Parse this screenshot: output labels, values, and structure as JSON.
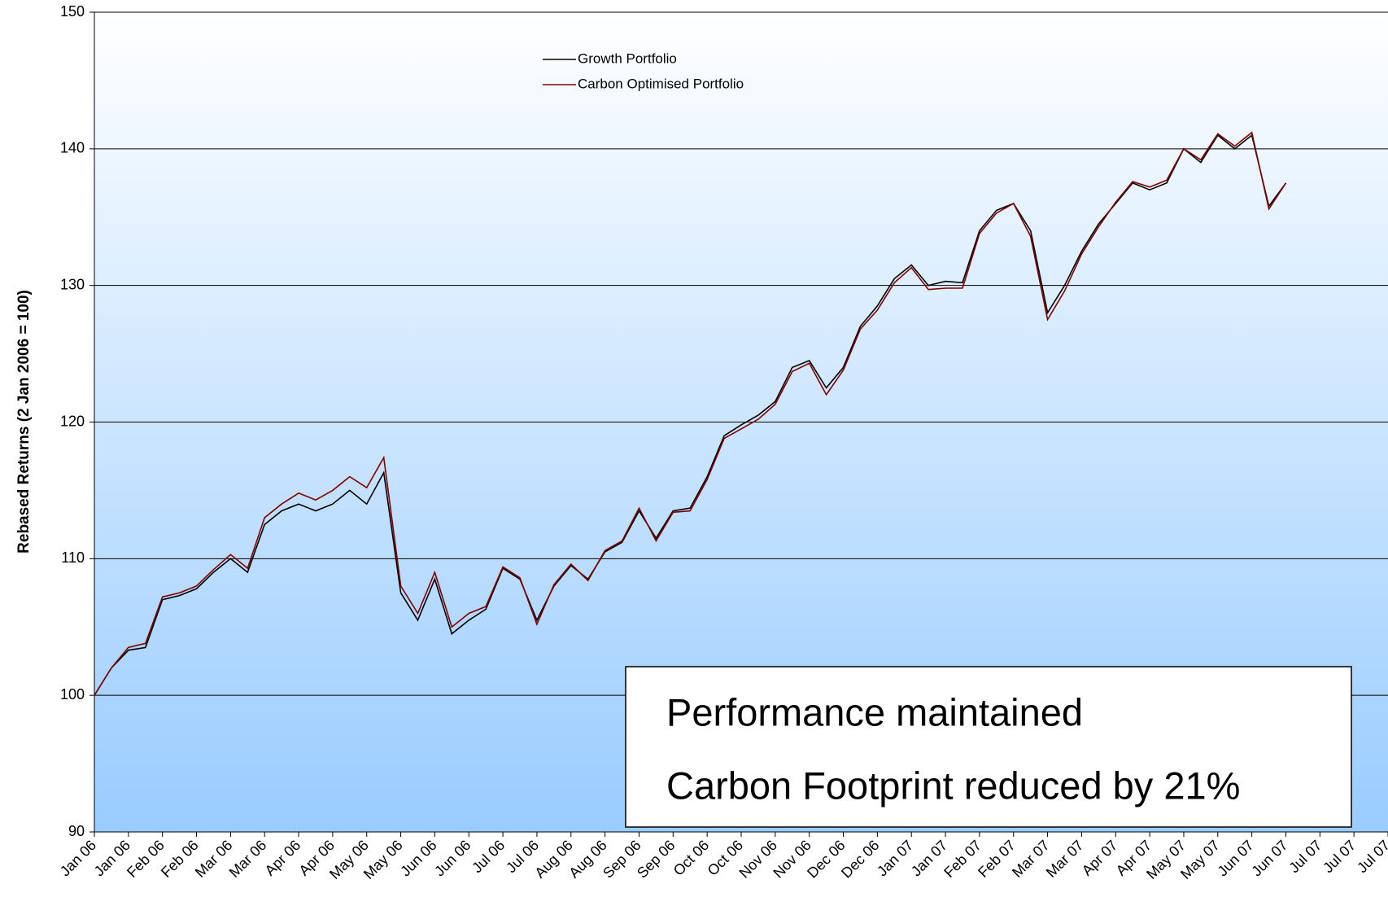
{
  "chart_data": {
    "type": "line",
    "ylabel": "Rebased Returns (2 Jan 2006 = 100)",
    "categories": [
      "Jan 06",
      null,
      "Jan 06",
      null,
      "Feb 06",
      null,
      "Feb 06",
      null,
      "Mar 06",
      null,
      "Mar 06",
      null,
      "Apr 06",
      null,
      "Apr 06",
      null,
      "May 06",
      null,
      "May 06",
      null,
      "Jun 06",
      null,
      "Jun 06",
      null,
      "Jul 06",
      null,
      "Jul 06",
      null,
      "Aug 06",
      null,
      "Aug 06",
      null,
      "Sep 06",
      null,
      "Sep 06",
      null,
      "Oct 06",
      null,
      "Oct 06",
      null,
      "Nov 06",
      null,
      "Nov 06",
      null,
      "Dec 06",
      null,
      "Dec 06",
      null,
      "Jan 07",
      null,
      "Jan 07",
      null,
      "Feb 07",
      null,
      "Feb 07",
      null,
      "Mar 07",
      null,
      "Mar 07",
      null,
      "Apr 07",
      null,
      "Apr 07",
      null,
      "May 07",
      null,
      "May 07",
      null,
      "Jun 07",
      null,
      "Jun 07",
      null,
      "Jul 07",
      null,
      "Jul 07",
      null,
      "Jul 07"
    ],
    "series": [
      {
        "name": "Growth Portfolio",
        "color": "#000000",
        "values": [
          100,
          102,
          103.3,
          103.5,
          107,
          107.3,
          107.8,
          109,
          110,
          109,
          112.5,
          113.5,
          114,
          113.5,
          114,
          115,
          114,
          116.3,
          107.5,
          105.5,
          108.5,
          104.5,
          105.5,
          106.3,
          109.3,
          108.5,
          105.5,
          108,
          109.5,
          108.5,
          110.5,
          111.2,
          113.5,
          111.5,
          113.5,
          113.7,
          116,
          119,
          119.8,
          120.5,
          121.5,
          124,
          124.5,
          122.5,
          124,
          127,
          128.5,
          130.5,
          131.5,
          130,
          130.3,
          130.2,
          134,
          135.5,
          136,
          134,
          128,
          130,
          132.5,
          134.5,
          136,
          137.5,
          137,
          137.5,
          140,
          139,
          141,
          140,
          141,
          135.8,
          137.5,
          null,
          null,
          null,
          null,
          null,
          null
        ]
      },
      {
        "name": "Carbon Optimised Portfolio",
        "color": "#800000",
        "values": [
          100,
          102,
          103.5,
          103.8,
          107.2,
          107.5,
          108,
          109.2,
          110.3,
          109.3,
          113,
          114,
          114.8,
          114.3,
          115,
          116,
          115.2,
          117.4,
          108,
          106,
          109,
          105,
          106,
          106.5,
          109.4,
          108.6,
          105.2,
          108.1,
          109.6,
          108.4,
          110.6,
          111.3,
          113.7,
          111.3,
          113.4,
          113.5,
          115.8,
          118.8,
          119.5,
          120.2,
          121.3,
          123.7,
          124.3,
          122,
          123.8,
          126.8,
          128.2,
          130.2,
          131.3,
          129.7,
          129.8,
          129.8,
          133.8,
          135.3,
          136,
          133.6,
          127.5,
          129.6,
          132.3,
          134.3,
          136.1,
          137.6,
          137.2,
          137.7,
          140,
          139.2,
          141.1,
          140.2,
          141.2,
          135.6,
          137.5,
          null,
          null,
          null,
          null,
          null,
          null
        ]
      }
    ],
    "ylim": [
      90,
      150
    ],
    "yticks": [
      90,
      100,
      110,
      120,
      130,
      140,
      150
    ],
    "grid": true,
    "annotations": [
      "Performance maintained",
      "Carbon Footprint reduced by 21%"
    ]
  }
}
